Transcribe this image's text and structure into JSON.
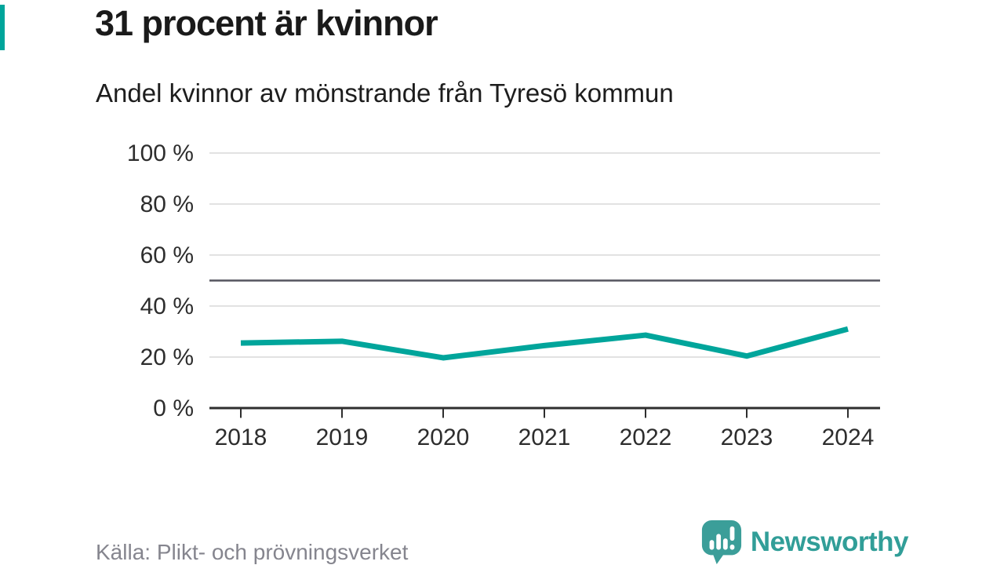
{
  "title": "31 procent är kvinnor",
  "subtitle": "Andel kvinnor av mönstrande från Tyresö kommun",
  "source": "Källa: Plikt- och prövningsverket",
  "brand": {
    "name": "Newsworthy",
    "logo_icon": "speech-bubble-bar-chart-icon",
    "color": "#319e98"
  },
  "colors": {
    "line": "#00a59b",
    "grid": "#e2e2e2",
    "axis": "#2e2e2e",
    "reference_line": "#55555f",
    "title": "#1a1a1a",
    "source_text": "#85858e",
    "accent": "#00a59b"
  },
  "chart_data": {
    "type": "line",
    "title": "31 procent är kvinnor",
    "subtitle": "Andel kvinnor av mönstrande från Tyresö kommun",
    "x": [
      2018,
      2019,
      2020,
      2021,
      2022,
      2023,
      2024
    ],
    "series": [
      {
        "name": "Andel kvinnor av mönstrande",
        "values": [
          25.5,
          26.2,
          19.7,
          24.5,
          28.6,
          20.4,
          31
        ]
      }
    ],
    "ylim": [
      0,
      100
    ],
    "ytick_values": [
      0,
      20,
      40,
      60,
      80,
      100
    ],
    "ytick_labels": [
      "0 %",
      "20 %",
      "40 %",
      "60 %",
      "80 %",
      "100 %"
    ],
    "reference_line": 50,
    "grid": "horizontal",
    "legend": "none",
    "unit": "percent"
  }
}
